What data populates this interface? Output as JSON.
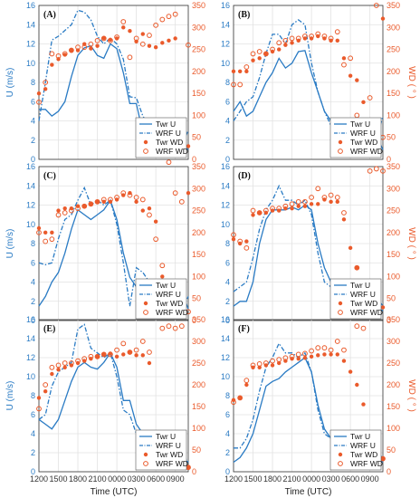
{
  "chart_data": {
    "type": "line",
    "colors": {
      "u": "#2a7bc4",
      "wd": "#ea5a2b"
    },
    "x_ticks": [
      "1200",
      "1500",
      "1800",
      "2100",
      "0000",
      "0300",
      "0600",
      "0900"
    ],
    "xlabel": "Time (UTC)",
    "ylabel_left": "U (m/s)",
    "ylabel_right": "WD ( ° )",
    "u_ylim": [
      0,
      16
    ],
    "u_ticks": [
      0,
      2,
      4,
      6,
      8,
      10,
      12,
      14,
      16
    ],
    "wd_ylim": [
      0,
      350
    ],
    "wd_ticks": [
      0,
      50,
      100,
      150,
      200,
      250,
      300,
      350
    ],
    "xlim_hours": [
      0,
      23
    ],
    "legend": {
      "position": "bottom-right",
      "entries": [
        "Twr U",
        "WRF U",
        "Twr WD",
        "WRF WD"
      ]
    },
    "panels": [
      {
        "label": "(A)",
        "twr_u": [
          5.2,
          5.2,
          4.5,
          5.0,
          6.0,
          8.6,
          10.8,
          11.6,
          11.8,
          10.8,
          10.5,
          12.0,
          11.5,
          9.0,
          5.8,
          5.8,
          2.8,
          3.4,
          4.0,
          4.2,
          3.5,
          4.0,
          1.6,
          1.0
        ],
        "wrf_u": [
          4.0,
          8.0,
          12.4,
          12.8,
          13.4,
          14.0,
          15.5,
          15.3,
          14.5,
          12.8,
          12.0,
          12.6,
          12.0,
          10.4,
          6.5,
          6.4,
          4.5,
          3.5,
          3.3,
          3.0,
          2.8,
          3.8,
          1.5,
          3.0
        ],
        "twr_wd": [
          150,
          160,
          215,
          228,
          238,
          248,
          248,
          262,
          252,
          258,
          276,
          272,
          275,
          300,
          292,
          268,
          285,
          258,
          255,
          265,
          270,
          275,
          38,
          30
        ],
        "wrf_wd": [
          130,
          175,
          240,
          235,
          240,
          248,
          255,
          255,
          262,
          270,
          275,
          270,
          278,
          313,
          232,
          275,
          262,
          282,
          305,
          318,
          325,
          330,
          40,
          260
        ]
      },
      {
        "label": "(B)",
        "twr_u": [
          5.0,
          6.0,
          4.5,
          5.0,
          6.5,
          8.0,
          9.0,
          10.5,
          9.5,
          10.0,
          11.2,
          11.3,
          9.0,
          7.0,
          5.0,
          4.0,
          2.0,
          2.2,
          2.0,
          2.8,
          1.6,
          3.0,
          2.5,
          1.0
        ],
        "wrf_u": [
          4.0,
          5.0,
          6.0,
          6.5,
          8.5,
          11.0,
          13.0,
          13.0,
          12.0,
          14.0,
          14.5,
          14.0,
          10.0,
          7.0,
          5.0,
          3.5,
          3.0,
          2.0,
          2.5,
          2.0,
          3.5,
          4.0,
          2.0,
          4.5
        ],
        "twr_wd": [
          200,
          200,
          200,
          225,
          230,
          240,
          245,
          250,
          260,
          265,
          270,
          275,
          275,
          280,
          275,
          270,
          270,
          230,
          190,
          180,
          130,
          60,
          40,
          320
        ],
        "wrf_wd": [
          170,
          170,
          210,
          240,
          245,
          240,
          250,
          265,
          270,
          275,
          275,
          280,
          280,
          285,
          280,
          275,
          290,
          215,
          230,
          100,
          60,
          140,
          350,
          50
        ]
      },
      {
        "label": "(C)",
        "twr_u": [
          1.5,
          2.5,
          4.0,
          5.0,
          7.0,
          9.5,
          11.5,
          11.0,
          10.5,
          11.0,
          11.5,
          12.5,
          10.5,
          7.0,
          4.5,
          3.5,
          3.0,
          1.5,
          2.5,
          1.2,
          2.0,
          2.5,
          3.0,
          1.2
        ],
        "wrf_u": [
          6.0,
          5.8,
          6.0,
          8.5,
          10.5,
          11.0,
          12.5,
          13.8,
          12.0,
          12.5,
          12.0,
          12.5,
          10.0,
          6.0,
          1.5,
          5.5,
          5.0,
          4.0,
          2.5,
          2.0,
          2.5,
          1.5,
          1.0,
          2.5
        ],
        "twr_wd": [
          210,
          200,
          200,
          250,
          255,
          255,
          260,
          260,
          265,
          270,
          270,
          270,
          275,
          285,
          290,
          270,
          250,
          255,
          225,
          100,
          20,
          60,
          20,
          290
        ],
        "wrf_wd": [
          200,
          180,
          185,
          240,
          245,
          250,
          255,
          260,
          265,
          270,
          275,
          275,
          280,
          290,
          285,
          280,
          275,
          240,
          185,
          125,
          360,
          290,
          270,
          20
        ]
      },
      {
        "label": "(D)",
        "twr_u": [
          1.5,
          2.0,
          2.0,
          4.0,
          8.0,
          10.5,
          11.5,
          11.5,
          11.5,
          11.8,
          11.5,
          12.0,
          11.5,
          8.0,
          5.5,
          4.0,
          3.0,
          2.5,
          1.5,
          2.0,
          2.5,
          2.5,
          1.5,
          1.0
        ],
        "wrf_u": [
          3.0,
          3.5,
          4.0,
          6.5,
          9.5,
          11.5,
          12.5,
          14.0,
          12.5,
          12.5,
          12.0,
          12.5,
          11.0,
          7.0,
          4.0,
          3.5,
          2.5,
          1.5,
          2.0,
          1.5,
          2.0,
          3.0,
          2.5,
          1.5
        ],
        "twr_wd": [
          185,
          175,
          180,
          240,
          245,
          245,
          250,
          250,
          255,
          255,
          260,
          260,
          265,
          265,
          275,
          270,
          270,
          230,
          165,
          120,
          60,
          50,
          80,
          30
        ],
        "wrf_wd": [
          195,
          180,
          165,
          250,
          245,
          250,
          255,
          255,
          260,
          265,
          270,
          270,
          280,
          300,
          280,
          285,
          280,
          245,
          80,
          120,
          50,
          340,
          345,
          340
        ]
      },
      {
        "label": "(E)",
        "twr_u": [
          5.5,
          5.0,
          4.5,
          5.5,
          7.5,
          9.5,
          11.0,
          11.5,
          11.0,
          10.8,
          11.5,
          12.5,
          11.0,
          7.5,
          7.5,
          5.0,
          4.0,
          2.5,
          2.5,
          2.6,
          2.6,
          2.0,
          1.5,
          1.0
        ],
        "wrf_u": [
          5.5,
          6.0,
          9.0,
          10.5,
          11.0,
          11.5,
          15.0,
          15.5,
          13.0,
          12.5,
          12.0,
          12.5,
          10.0,
          6.5,
          6.0,
          4.0,
          2.0,
          1.5,
          2.0,
          2.5,
          3.0,
          3.5,
          2.0,
          1.0
        ],
        "twr_wd": [
          170,
          185,
          225,
          235,
          240,
          245,
          250,
          255,
          260,
          265,
          270,
          272,
          265,
          270,
          275,
          268,
          268,
          250,
          40,
          30,
          30,
          25,
          15,
          10
        ],
        "wrf_wd": [
          145,
          200,
          240,
          245,
          250,
          250,
          255,
          260,
          265,
          265,
          270,
          270,
          280,
          295,
          275,
          280,
          300,
          275,
          45,
          330,
          335,
          330,
          335,
          10
        ]
      },
      {
        "label": "(F)",
        "twr_u": [
          1.0,
          1.5,
          2.5,
          4.0,
          6.5,
          9.0,
          9.5,
          9.8,
          10.5,
          11.0,
          11.5,
          12.0,
          10.5,
          7.0,
          4.5,
          3.5,
          2.5,
          1.5,
          1.0,
          1.5,
          2.0,
          2.5,
          1.5,
          1.0
        ],
        "wrf_u": [
          2.5,
          2.5,
          3.5,
          5.5,
          8.5,
          11.0,
          12.0,
          13.5,
          12.5,
          12.5,
          12.0,
          12.5,
          10.5,
          6.5,
          4.0,
          3.5,
          2.5,
          1.5,
          2.0,
          1.5,
          2.0,
          2.5,
          2.0,
          1.5
        ],
        "twr_wd": [
          165,
          170,
          200,
          240,
          240,
          245,
          245,
          250,
          255,
          260,
          260,
          262,
          265,
          268,
          270,
          270,
          270,
          255,
          230,
          200,
          155,
          90,
          60,
          30
        ],
        "wrf_wd": [
          160,
          170,
          210,
          245,
          248,
          250,
          255,
          258,
          262,
          265,
          270,
          272,
          278,
          285,
          285,
          280,
          300,
          280,
          70,
          335,
          330,
          65,
          40,
          30
        ]
      }
    ]
  }
}
